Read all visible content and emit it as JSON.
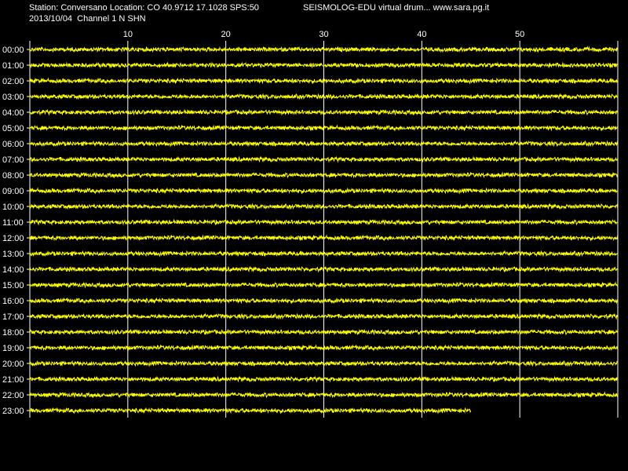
{
  "header": {
    "station_line": "Station: Conversano Location: CO 40.9712 17.1028 SPS:50",
    "app_line": "SEISMOLOG-EDU virtual drum... www.sara.pg.it",
    "date_channel_line": "2013/10/04  Channel 1 N SHN"
  },
  "colors": {
    "background": "#000000",
    "trace": "#ffff00",
    "grid": "#ffffff",
    "text": "#ffffff"
  },
  "chart_data": {
    "type": "line",
    "x_ticks": [
      "10",
      "20",
      "30",
      "40",
      "50"
    ],
    "x_tick_values": [
      10,
      20,
      30,
      40,
      50
    ],
    "xlim": [
      0,
      60
    ],
    "row_labels": [
      "00:00",
      "01:00",
      "02:00",
      "03:00",
      "04:00",
      "05:00",
      "06:00",
      "07:00",
      "08:00",
      "09:00",
      "10:00",
      "11:00",
      "12:00",
      "13:00",
      "14:00",
      "15:00",
      "16:00",
      "17:00",
      "18:00",
      "19:00",
      "20:00",
      "21:00",
      "22:00",
      "23:00"
    ],
    "last_row_end_minute": 45,
    "grid": true
  }
}
